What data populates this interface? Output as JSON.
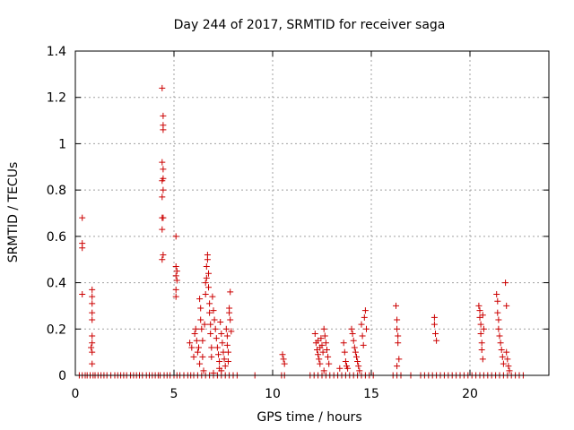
{
  "chart_data": {
    "type": "scatter",
    "title": "Day 244 of 2017, SRMTID for receiver saga",
    "xlabel": "GPS time / hours",
    "ylabel": "SRMTID / TECUs",
    "xlim": [
      0,
      24
    ],
    "ylim": [
      0,
      1.4
    ],
    "xticks": [
      0,
      5,
      10,
      15,
      20
    ],
    "xtick_labels": [
      "0",
      "5",
      "10",
      "15",
      "20"
    ],
    "yticks": [
      0,
      0.2,
      0.4,
      0.6,
      0.8,
      1.0,
      1.2,
      1.4
    ],
    "ytick_labels": [
      "0",
      "0.2",
      "0.4",
      "0.6",
      "0.8",
      "1",
      "1.2",
      "1.4"
    ],
    "grid": true,
    "marker": "+",
    "series": [
      {
        "name": "SRMTID",
        "color": "#cc0000",
        "points": [
          [
            0.2,
            0
          ],
          [
            0.35,
            0
          ],
          [
            0.5,
            0
          ],
          [
            0.6,
            0
          ],
          [
            0.75,
            0
          ],
          [
            0.9,
            0
          ],
          [
            1.0,
            0
          ],
          [
            1.15,
            0
          ],
          [
            1.3,
            0
          ],
          [
            1.45,
            0
          ],
          [
            1.6,
            0
          ],
          [
            1.8,
            0
          ],
          [
            2.0,
            0
          ],
          [
            2.15,
            0
          ],
          [
            2.3,
            0
          ],
          [
            2.45,
            0
          ],
          [
            2.6,
            0
          ],
          [
            2.8,
            0
          ],
          [
            2.95,
            0
          ],
          [
            3.1,
            0
          ],
          [
            3.25,
            0
          ],
          [
            3.4,
            0
          ],
          [
            3.6,
            0
          ],
          [
            3.75,
            0
          ],
          [
            3.9,
            0
          ],
          [
            4.05,
            0
          ],
          [
            4.2,
            0
          ],
          [
            4.3,
            0
          ],
          [
            4.5,
            0
          ],
          [
            4.65,
            0
          ],
          [
            4.8,
            0
          ],
          [
            5.0,
            0
          ],
          [
            5.15,
            0
          ],
          [
            5.3,
            0
          ],
          [
            5.5,
            0
          ],
          [
            5.7,
            0
          ],
          [
            5.85,
            0
          ],
          [
            6.0,
            0
          ],
          [
            6.2,
            0
          ],
          [
            6.4,
            0
          ],
          [
            6.6,
            0
          ],
          [
            6.8,
            0
          ],
          [
            7.0,
            0
          ],
          [
            7.2,
            0
          ],
          [
            7.4,
            0
          ],
          [
            7.6,
            0
          ],
          [
            7.8,
            0
          ],
          [
            8.0,
            0
          ],
          [
            8.2,
            0
          ],
          [
            9.1,
            0
          ],
          [
            10.45,
            0
          ],
          [
            10.6,
            0
          ],
          [
            11.9,
            0
          ],
          [
            12.1,
            0
          ],
          [
            12.3,
            0
          ],
          [
            12.5,
            0
          ],
          [
            12.7,
            0
          ],
          [
            12.9,
            0
          ],
          [
            13.1,
            0
          ],
          [
            13.3,
            0
          ],
          [
            13.5,
            0
          ],
          [
            13.7,
            0
          ],
          [
            13.9,
            0
          ],
          [
            14.1,
            0
          ],
          [
            14.3,
            0
          ],
          [
            14.5,
            0
          ],
          [
            14.7,
            0
          ],
          [
            14.9,
            0
          ],
          [
            15.1,
            0
          ],
          [
            16.1,
            0
          ],
          [
            16.3,
            0
          ],
          [
            16.5,
            0
          ],
          [
            17.0,
            0
          ],
          [
            17.5,
            0
          ],
          [
            17.7,
            0
          ],
          [
            17.9,
            0
          ],
          [
            18.1,
            0
          ],
          [
            18.3,
            0
          ],
          [
            18.5,
            0
          ],
          [
            18.7,
            0
          ],
          [
            18.9,
            0
          ],
          [
            19.1,
            0
          ],
          [
            19.3,
            0
          ],
          [
            19.5,
            0
          ],
          [
            19.7,
            0
          ],
          [
            19.9,
            0
          ],
          [
            20.1,
            0
          ],
          [
            20.3,
            0
          ],
          [
            20.5,
            0
          ],
          [
            20.7,
            0
          ],
          [
            20.9,
            0
          ],
          [
            21.1,
            0
          ],
          [
            21.3,
            0
          ],
          [
            21.5,
            0
          ],
          [
            21.7,
            0
          ],
          [
            21.9,
            0
          ],
          [
            22.1,
            0
          ],
          [
            22.3,
            0
          ],
          [
            22.5,
            0
          ],
          [
            22.7,
            0
          ],
          [
            0.35,
            0.68
          ],
          [
            0.35,
            0.57
          ],
          [
            0.35,
            0.55
          ],
          [
            0.35,
            0.35
          ],
          [
            0.85,
            0.37
          ],
          [
            0.85,
            0.34
          ],
          [
            0.85,
            0.31
          ],
          [
            0.85,
            0.27
          ],
          [
            0.85,
            0.24
          ],
          [
            0.85,
            0.17
          ],
          [
            0.85,
            0.14
          ],
          [
            0.8,
            0.12
          ],
          [
            0.85,
            0.1
          ],
          [
            0.85,
            0.05
          ],
          [
            4.4,
            1.24
          ],
          [
            4.45,
            1.12
          ],
          [
            4.45,
            1.08
          ],
          [
            4.45,
            1.06
          ],
          [
            4.4,
            0.92
          ],
          [
            4.45,
            0.89
          ],
          [
            4.45,
            0.85
          ],
          [
            4.4,
            0.84
          ],
          [
            4.45,
            0.8
          ],
          [
            4.4,
            0.77
          ],
          [
            4.4,
            0.68
          ],
          [
            4.45,
            0.68
          ],
          [
            4.4,
            0.63
          ],
          [
            4.45,
            0.52
          ],
          [
            4.4,
            0.5
          ],
          [
            5.1,
            0.6
          ],
          [
            5.1,
            0.47
          ],
          [
            5.15,
            0.45
          ],
          [
            5.1,
            0.43
          ],
          [
            5.15,
            0.41
          ],
          [
            5.1,
            0.37
          ],
          [
            5.1,
            0.34
          ],
          [
            5.8,
            0.14
          ],
          [
            5.9,
            0.12
          ],
          [
            6.0,
            0.08
          ],
          [
            6.05,
            0.18
          ],
          [
            6.1,
            0.2
          ],
          [
            6.15,
            0.15
          ],
          [
            6.2,
            0.1
          ],
          [
            6.25,
            0.12
          ],
          [
            6.3,
            0.05
          ],
          [
            6.3,
            0.33
          ],
          [
            6.35,
            0.29
          ],
          [
            6.35,
            0.24
          ],
          [
            6.4,
            0.2
          ],
          [
            6.45,
            0.15
          ],
          [
            6.45,
            0.08
          ],
          [
            6.5,
            0.02
          ],
          [
            6.55,
            0.22
          ],
          [
            6.6,
            0.35
          ],
          [
            6.6,
            0.4
          ],
          [
            6.65,
            0.42
          ],
          [
            6.65,
            0.47
          ],
          [
            6.7,
            0.5
          ],
          [
            6.7,
            0.52
          ],
          [
            6.75,
            0.44
          ],
          [
            6.75,
            0.38
          ],
          [
            6.8,
            0.31
          ],
          [
            6.8,
            0.27
          ],
          [
            6.85,
            0.22
          ],
          [
            6.85,
            0.18
          ],
          [
            6.9,
            0.12
          ],
          [
            6.9,
            0.08
          ],
          [
            6.95,
            0.34
          ],
          [
            7.0,
            0.28
          ],
          [
            7.05,
            0.24
          ],
          [
            7.1,
            0.2
          ],
          [
            7.15,
            0.16
          ],
          [
            7.2,
            0.12
          ],
          [
            7.25,
            0.09
          ],
          [
            7.3,
            0.06
          ],
          [
            7.35,
            0.23
          ],
          [
            7.4,
            0.18
          ],
          [
            7.45,
            0.14
          ],
          [
            7.5,
            0.1
          ],
          [
            7.55,
            0.07
          ],
          [
            7.6,
            0.04
          ],
          [
            7.65,
            0.2
          ],
          [
            7.7,
            0.17
          ],
          [
            7.7,
            0.13
          ],
          [
            7.75,
            0.1
          ],
          [
            7.75,
            0.06
          ],
          [
            7.8,
            0.27
          ],
          [
            7.8,
            0.29
          ],
          [
            7.85,
            0.36
          ],
          [
            7.85,
            0.24
          ],
          [
            7.9,
            0.19
          ],
          [
            7.3,
            0.03
          ],
          [
            7.4,
            0.02
          ],
          [
            7.0,
            0.01
          ],
          [
            10.5,
            0.09
          ],
          [
            10.55,
            0.07
          ],
          [
            10.6,
            0.05
          ],
          [
            12.15,
            0.18
          ],
          [
            12.2,
            0.14
          ],
          [
            12.25,
            0.11
          ],
          [
            12.3,
            0.09
          ],
          [
            12.35,
            0.07
          ],
          [
            12.4,
            0.05
          ],
          [
            12.45,
            0.16
          ],
          [
            12.5,
            0.13
          ],
          [
            12.55,
            0.1
          ],
          [
            12.6,
            0.2
          ],
          [
            12.65,
            0.17
          ],
          [
            12.7,
            0.14
          ],
          [
            12.75,
            0.11
          ],
          [
            12.8,
            0.08
          ],
          [
            12.85,
            0.05
          ],
          [
            12.6,
            0.02
          ],
          [
            12.4,
            0.12
          ],
          [
            12.3,
            0.15
          ],
          [
            13.4,
            0.03
          ],
          [
            13.6,
            0.14
          ],
          [
            13.65,
            0.1
          ],
          [
            13.7,
            0.06
          ],
          [
            13.75,
            0.04
          ],
          [
            13.8,
            0.03
          ],
          [
            14.0,
            0.2
          ],
          [
            14.05,
            0.18
          ],
          [
            14.1,
            0.15
          ],
          [
            14.15,
            0.12
          ],
          [
            14.2,
            0.1
          ],
          [
            14.25,
            0.08
          ],
          [
            14.3,
            0.06
          ],
          [
            14.35,
            0.04
          ],
          [
            14.4,
            0.02
          ],
          [
            14.5,
            0.22
          ],
          [
            14.55,
            0.17
          ],
          [
            14.6,
            0.13
          ],
          [
            14.65,
            0.25
          ],
          [
            14.7,
            0.28
          ],
          [
            14.75,
            0.2
          ],
          [
            16.25,
            0.3
          ],
          [
            16.3,
            0.24
          ],
          [
            16.3,
            0.2
          ],
          [
            16.35,
            0.17
          ],
          [
            16.35,
            0.14
          ],
          [
            16.4,
            0.07
          ],
          [
            16.3,
            0.04
          ],
          [
            18.2,
            0.25
          ],
          [
            18.2,
            0.22
          ],
          [
            18.25,
            0.18
          ],
          [
            18.3,
            0.15
          ],
          [
            20.45,
            0.3
          ],
          [
            20.5,
            0.28
          ],
          [
            20.5,
            0.25
          ],
          [
            20.55,
            0.22
          ],
          [
            20.55,
            0.18
          ],
          [
            20.6,
            0.14
          ],
          [
            20.6,
            0.11
          ],
          [
            20.65,
            0.07
          ],
          [
            20.65,
            0.26
          ],
          [
            20.7,
            0.2
          ],
          [
            21.35,
            0.35
          ],
          [
            21.4,
            0.32
          ],
          [
            21.4,
            0.27
          ],
          [
            21.45,
            0.24
          ],
          [
            21.45,
            0.2
          ],
          [
            21.5,
            0.17
          ],
          [
            21.55,
            0.14
          ],
          [
            21.6,
            0.11
          ],
          [
            21.65,
            0.08
          ],
          [
            21.7,
            0.05
          ],
          [
            21.8,
            0.4
          ],
          [
            21.85,
            0.3
          ],
          [
            21.85,
            0.1
          ],
          [
            21.9,
            0.07
          ],
          [
            21.95,
            0.04
          ],
          [
            22.0,
            0.02
          ]
        ]
      }
    ]
  }
}
